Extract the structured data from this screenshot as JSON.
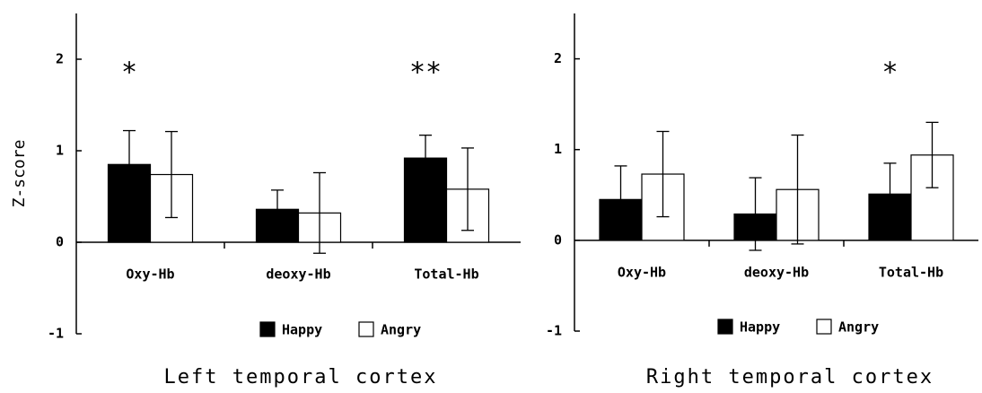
{
  "chart_data": [
    {
      "type": "bar",
      "title": "Left temporal cortex",
      "ylabel": "Z-score",
      "categories": [
        "Oxy-Hb",
        "deoxy-Hb",
        "Total-Hb"
      ],
      "series": [
        {
          "name": "Happy",
          "color": "#000000",
          "values": [
            0.85,
            0.36,
            0.92
          ],
          "errors": [
            0.37,
            0.21,
            0.25
          ]
        },
        {
          "name": "Angry",
          "color": "#ffffff",
          "values": [
            0.74,
            0.32,
            0.58
          ],
          "errors": [
            0.47,
            0.44,
            0.45
          ]
        }
      ],
      "ylim": [
        -1,
        2.5
      ],
      "yticks": [
        -1,
        0,
        1,
        2
      ],
      "annotations": [
        {
          "text": "*",
          "category": "Oxy-Hb"
        },
        {
          "text": "**",
          "category": "Total-Hb"
        }
      ],
      "legend": "lower right"
    },
    {
      "type": "bar",
      "title": "Right temporal cortex",
      "categories": [
        "Oxy-Hb",
        "deoxy-Hb",
        "Total-Hb"
      ],
      "series": [
        {
          "name": "Happy",
          "color": "#000000",
          "values": [
            0.45,
            0.29,
            0.51
          ],
          "errors": [
            0.37,
            0.4,
            0.34
          ]
        },
        {
          "name": "Angry",
          "color": "#ffffff",
          "values": [
            0.73,
            0.56,
            0.94
          ],
          "errors": [
            0.47,
            0.6,
            0.36
          ]
        }
      ],
      "ylim": [
        -1,
        2.5
      ],
      "yticks": [
        -1,
        0,
        1,
        2
      ],
      "annotations": [
        {
          "text": "*",
          "category": "Total-Hb"
        }
      ],
      "legend": "lower right"
    }
  ]
}
